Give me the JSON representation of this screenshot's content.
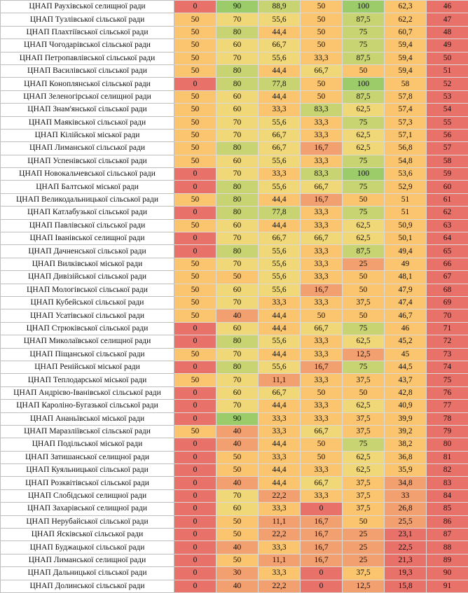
{
  "rows": [
    {
      "name": "ЦНАП Раухівської селищної ради",
      "c1": "0",
      "c2": "90",
      "c3": "88,9",
      "c4": "50",
      "c5": "100",
      "c6": "62,3",
      "rank": "46"
    },
    {
      "name": "ЦНАП Тузлівської сільської ради",
      "c1": "50",
      "c2": "70",
      "c3": "55,6",
      "c4": "50",
      "c5": "87,5",
      "c6": "62,2",
      "rank": "47"
    },
    {
      "name": "ЦНАП Плахтіївської сільської ради",
      "c1": "50",
      "c2": "80",
      "c3": "44,4",
      "c4": "50",
      "c5": "75",
      "c6": "60,7",
      "rank": "48"
    },
    {
      "name": "ЦНАП Чогодарівської сільської ради",
      "c1": "50",
      "c2": "60",
      "c3": "66,7",
      "c4": "50",
      "c5": "75",
      "c6": "59,4",
      "rank": "49"
    },
    {
      "name": "ЦНАП Петропавлівської сільської ради",
      "c1": "50",
      "c2": "70",
      "c3": "55,6",
      "c4": "33,3",
      "c5": "87,5",
      "c6": "59,4",
      "rank": "50"
    },
    {
      "name": "ЦНАП Василівської сільської ради",
      "c1": "50",
      "c2": "80",
      "c3": "44,4",
      "c4": "66,7",
      "c5": "50",
      "c6": "59,4",
      "rank": "51"
    },
    {
      "name": "ЦНАП Коноплянської сільської ради",
      "c1": "0",
      "c2": "80",
      "c3": "77,8",
      "c4": "50",
      "c5": "100",
      "c6": "58",
      "rank": "52"
    },
    {
      "name": "ЦНАП Зеленогірської селищної ради",
      "c1": "50",
      "c2": "60",
      "c3": "44,4",
      "c4": "50",
      "c5": "87,5",
      "c6": "57,8",
      "rank": "53"
    },
    {
      "name": "ЦНАП Знам'янської сільської ради",
      "c1": "50",
      "c2": "60",
      "c3": "33,3",
      "c4": "83,3",
      "c5": "62,5",
      "c6": "57,4",
      "rank": "54"
    },
    {
      "name": "ЦНАП Маяківської сільської ради",
      "c1": "50",
      "c2": "70",
      "c3": "55,6",
      "c4": "33,3",
      "c5": "75",
      "c6": "57,3",
      "rank": "55"
    },
    {
      "name": "ЦНАП Кілійської міської ради",
      "c1": "50",
      "c2": "70",
      "c3": "66,7",
      "c4": "33,3",
      "c5": "62,5",
      "c6": "57,1",
      "rank": "56"
    },
    {
      "name": "ЦНАП Лиманської сільської ради",
      "c1": "50",
      "c2": "80",
      "c3": "66,7",
      "c4": "16,7",
      "c5": "62,5",
      "c6": "56,8",
      "rank": "57"
    },
    {
      "name": "ЦНАП Успенівської сільської ради",
      "c1": "50",
      "c2": "60",
      "c3": "55,6",
      "c4": "33,3",
      "c5": "75",
      "c6": "54,8",
      "rank": "58"
    },
    {
      "name": "ЦНАП Новокальчевської сільської ради",
      "c1": "0",
      "c2": "70",
      "c3": "33,3",
      "c4": "83,3",
      "c5": "100",
      "c6": "53,6",
      "rank": "59"
    },
    {
      "name": "ЦНАП Балтської міської ради",
      "c1": "0",
      "c2": "80",
      "c3": "55,6",
      "c4": "66,7",
      "c5": "75",
      "c6": "52,9",
      "rank": "60"
    },
    {
      "name": "ЦНАП Великодальницької сільської ради",
      "c1": "50",
      "c2": "80",
      "c3": "44,4",
      "c4": "16,7",
      "c5": "50",
      "c6": "51",
      "rank": "61"
    },
    {
      "name": "ЦНАП Катлабузької сільської ради",
      "c1": "0",
      "c2": "80",
      "c3": "77,8",
      "c4": "33,3",
      "c5": "75",
      "c6": "51",
      "rank": "62"
    },
    {
      "name": "ЦНАП Павлівської сільської ради",
      "c1": "50",
      "c2": "60",
      "c3": "44,4",
      "c4": "33,3",
      "c5": "62,5",
      "c6": "50,9",
      "rank": "63"
    },
    {
      "name": "ЦНАП Іванівської селищної ради",
      "c1": "0",
      "c2": "70",
      "c3": "66,7",
      "c4": "66,7",
      "c5": "62,5",
      "c6": "50,1",
      "rank": "64"
    },
    {
      "name": "ЦНАП Дачненської сільської ради",
      "c1": "0",
      "c2": "80",
      "c3": "55,6",
      "c4": "33,3",
      "c5": "87,5",
      "c6": "49,4",
      "rank": "65"
    },
    {
      "name": "ЦНАП Вилківської міської ради",
      "c1": "50",
      "c2": "70",
      "c3": "55,6",
      "c4": "33,3",
      "c5": "25",
      "c6": "49",
      "rank": "66"
    },
    {
      "name": "ЦНАП Дивізійської сільської ради",
      "c1": "50",
      "c2": "50",
      "c3": "55,6",
      "c4": "33,3",
      "c5": "50",
      "c6": "48,1",
      "rank": "67"
    },
    {
      "name": "ЦНАП Мологівської сільської ради",
      "c1": "50",
      "c2": "60",
      "c3": "55,6",
      "c4": "16,7",
      "c5": "50",
      "c6": "47,9",
      "rank": "68"
    },
    {
      "name": "ЦНАП Кубейської сільської ради",
      "c1": "50",
      "c2": "70",
      "c3": "33,3",
      "c4": "33,3",
      "c5": "37,5",
      "c6": "47,4",
      "rank": "69"
    },
    {
      "name": "ЦНАП Усатівської сільської ради",
      "c1": "50",
      "c2": "40",
      "c3": "44,4",
      "c4": "50",
      "c5": "50",
      "c6": "46,7",
      "rank": "70"
    },
    {
      "name": "ЦНАП Стрюківської сільської ради",
      "c1": "0",
      "c2": "60",
      "c3": "44,4",
      "c4": "66,7",
      "c5": "75",
      "c6": "46",
      "rank": "71"
    },
    {
      "name": "ЦНАП Миколаївської селищної ради",
      "c1": "0",
      "c2": "80",
      "c3": "55,6",
      "c4": "33,3",
      "c5": "62,5",
      "c6": "45,2",
      "rank": "72"
    },
    {
      "name": "ЦНАП Піщанської сільської ради",
      "c1": "50",
      "c2": "70",
      "c3": "44,4",
      "c4": "33,3",
      "c5": "12,5",
      "c6": "45",
      "rank": "73"
    },
    {
      "name": "ЦНАП Ренійської міської ради",
      "c1": "0",
      "c2": "80",
      "c3": "55,6",
      "c4": "16,7",
      "c5": "75",
      "c6": "44,5",
      "rank": "74"
    },
    {
      "name": "ЦНАП Теплодарської міської ради",
      "c1": "50",
      "c2": "70",
      "c3": "11,1",
      "c4": "33,3",
      "c5": "37,5",
      "c6": "43,7",
      "rank": "75"
    },
    {
      "name": "ЦНАП Андрієво-Іванівської сільської ради",
      "c1": "0",
      "c2": "60",
      "c3": "66,7",
      "c4": "50",
      "c5": "50",
      "c6": "42,8",
      "rank": "76"
    },
    {
      "name": "ЦНАП Кароліно-Бугазької сільської ради",
      "c1": "0",
      "c2": "70",
      "c3": "44,4",
      "c4": "33,3",
      "c5": "62,5",
      "c6": "40,9",
      "rank": "77"
    },
    {
      "name": "ЦНАП Ананьївської міської ради",
      "c1": "0",
      "c2": "90",
      "c3": "33,3",
      "c4": "33,3",
      "c5": "37,5",
      "c6": "39,9",
      "rank": "78"
    },
    {
      "name": "ЦНАП Маразліївської сільської ради",
      "c1": "50",
      "c2": "40",
      "c3": "33,3",
      "c4": "66,7",
      "c5": "37,5",
      "c6": "39,2",
      "rank": "79"
    },
    {
      "name": "ЦНАП Подільської міської ради",
      "c1": "0",
      "c2": "40",
      "c3": "44,4",
      "c4": "50",
      "c5": "75",
      "c6": "38,2",
      "rank": "80"
    },
    {
      "name": "ЦНАП Затишанської селищної ради",
      "c1": "0",
      "c2": "50",
      "c3": "33,3",
      "c4": "50",
      "c5": "62,5",
      "c6": "36,8",
      "rank": "81"
    },
    {
      "name": "ЦНАП Куяльницької сільської ради",
      "c1": "0",
      "c2": "50",
      "c3": "44,4",
      "c4": "33,3",
      "c5": "62,5",
      "c6": "35,9",
      "rank": "82"
    },
    {
      "name": "ЦНАП Розквітівської сільської ради",
      "c1": "0",
      "c2": "40",
      "c3": "44,4",
      "c4": "66,7",
      "c5": "37,5",
      "c6": "34,8",
      "rank": "83"
    },
    {
      "name": "ЦНАП Слобідської селищної ради",
      "c1": "0",
      "c2": "70",
      "c3": "22,2",
      "c4": "33,3",
      "c5": "37,5",
      "c6": "33",
      "rank": "84"
    },
    {
      "name": "ЦНАП Захарівської селищної ради",
      "c1": "0",
      "c2": "60",
      "c3": "33,3",
      "c4": "0",
      "c5": "37,5",
      "c6": "26,8",
      "rank": "85"
    },
    {
      "name": "ЦНАП Нерубайської сільської ради",
      "c1": "0",
      "c2": "50",
      "c3": "11,1",
      "c4": "16,7",
      "c5": "50",
      "c6": "25,5",
      "rank": "86"
    },
    {
      "name": "ЦНАП Ясківської сільської ради",
      "c1": "0",
      "c2": "50",
      "c3": "22,2",
      "c4": "16,7",
      "c5": "25",
      "c6": "23,1",
      "rank": "87"
    },
    {
      "name": "ЦНАП Буджацької сільської ради",
      "c1": "0",
      "c2": "40",
      "c3": "33,3",
      "c4": "16,7",
      "c5": "25",
      "c6": "22,5",
      "rank": "88"
    },
    {
      "name": "ЦНАП Лиманської селищної ради",
      "c1": "0",
      "c2": "50",
      "c3": "11,1",
      "c4": "16,7",
      "c5": "25",
      "c6": "21,3",
      "rank": "89"
    },
    {
      "name": "ЦНАП Дальницької сільської ради",
      "c1": "0",
      "c2": "30",
      "c3": "33,3",
      "c4": "0",
      "c5": "37,5",
      "c6": "19,3",
      "rank": "90"
    },
    {
      "name": "ЦНАП Долинської сільської ради",
      "c1": "0",
      "c2": "40",
      "c3": "22,2",
      "c4": "0",
      "c5": "12,5",
      "c6": "15,8",
      "rank": "91"
    }
  ],
  "colors": {
    "scale": [
      "#e8726a",
      "#f2a070",
      "#fbc46e",
      "#f0d878",
      "#c8d472",
      "#9ccb6a"
    ],
    "rank_bg": "#e8726a"
  }
}
